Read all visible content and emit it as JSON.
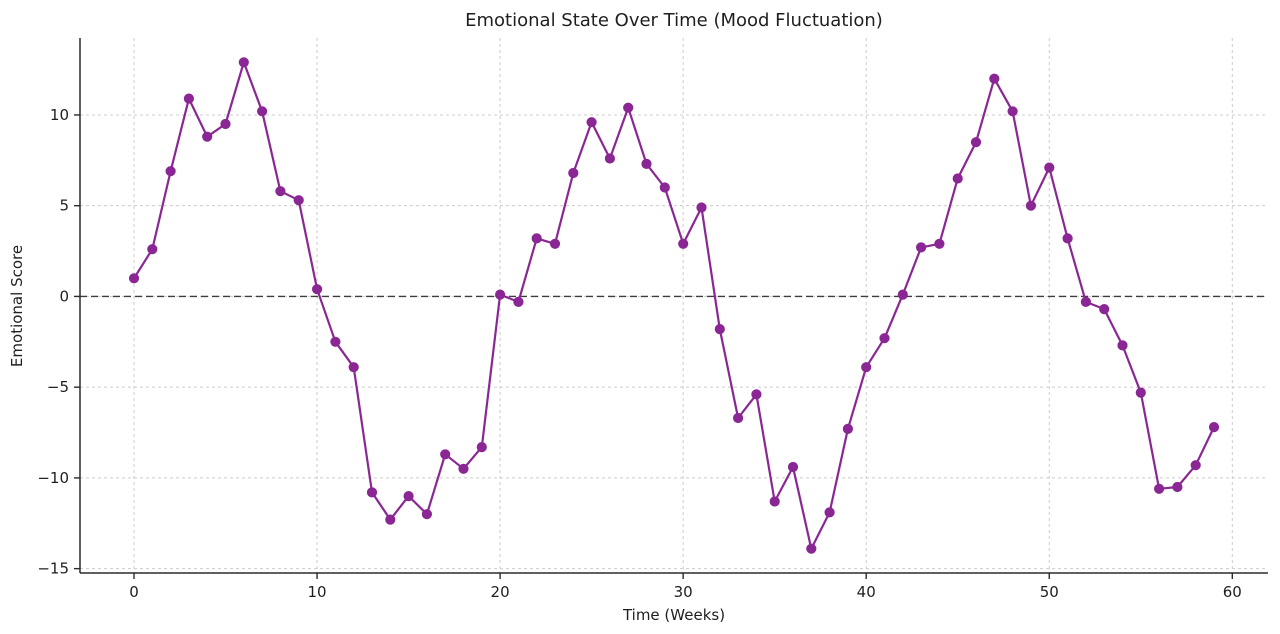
{
  "chart_data": {
    "type": "line",
    "title": "Emotional State Over Time (Mood Fluctuation)",
    "xlabel": "Time (Weeks)",
    "ylabel": "Emotional Score",
    "x": [
      0,
      1,
      2,
      3,
      4,
      5,
      6,
      7,
      8,
      9,
      10,
      11,
      12,
      13,
      14,
      15,
      16,
      17,
      18,
      19,
      20,
      21,
      22,
      23,
      24,
      25,
      26,
      27,
      28,
      29,
      30,
      31,
      32,
      33,
      34,
      35,
      36,
      37,
      38,
      39,
      40,
      41,
      42,
      43,
      44,
      45,
      46,
      47,
      48,
      49,
      50,
      51,
      52,
      53,
      54,
      55,
      56,
      57,
      58,
      59
    ],
    "values": [
      1.0,
      2.6,
      6.9,
      10.9,
      8.8,
      9.5,
      12.9,
      10.2,
      5.8,
      5.3,
      0.4,
      -2.5,
      -3.9,
      -10.8,
      -12.3,
      -11.0,
      -12.0,
      -8.7,
      -9.5,
      -8.3,
      0.1,
      -0.3,
      3.2,
      2.9,
      6.8,
      9.6,
      7.6,
      10.4,
      7.3,
      6.0,
      2.9,
      4.9,
      -1.8,
      -6.7,
      -5.4,
      -11.3,
      -9.4,
      -13.9,
      -11.9,
      -7.3,
      -3.9,
      -2.3,
      0.1,
      2.7,
      2.9,
      6.5,
      8.5,
      12.0,
      10.2,
      5.0,
      7.1,
      3.2,
      -0.3,
      -0.7,
      -2.7,
      -5.3,
      -10.6,
      -10.5,
      -9.3,
      -7.2
    ],
    "xlim": [
      -2.95,
      61.95
    ],
    "ylim": [
      -15.24,
      14.24
    ],
    "xticks": [
      0,
      10,
      20,
      30,
      40,
      50,
      60
    ],
    "xtick_labels": [
      "0",
      "10",
      "20",
      "30",
      "40",
      "50",
      "60"
    ],
    "yticks": [
      -15,
      -10,
      -5,
      0,
      5,
      10
    ],
    "ytick_labels": [
      "−15",
      "−10",
      "−5",
      "0",
      "5",
      "10"
    ],
    "grid": true,
    "grid_style": "dashed",
    "zero_line": true,
    "legend": "none",
    "colors": {
      "line": "#8a2794",
      "marker": "#8a2794",
      "grid": "#cccccc",
      "zero_line": "#3d3d3d",
      "spine": "#2b2b2b",
      "text": "#1f1f1f"
    }
  }
}
